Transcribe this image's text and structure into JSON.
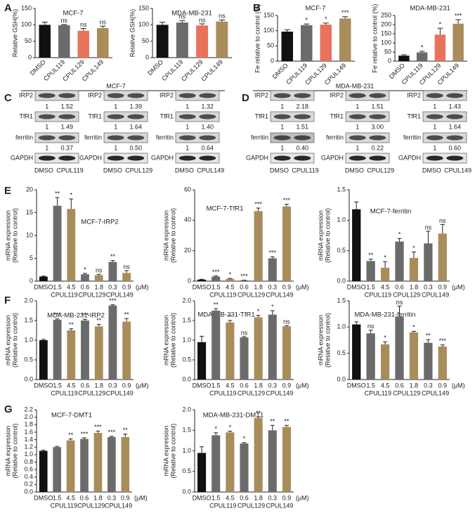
{
  "panel_labels": [
    "A",
    "B",
    "C",
    "D",
    "E",
    "F",
    "G"
  ],
  "chart_data": [
    {
      "type": "bar",
      "title": "MCF-7",
      "ylabel": [
        "Relative GSH(%)"
      ],
      "categories": [
        "DMSO",
        "CPUL119",
        "CPUL129",
        "CPUL149"
      ],
      "values": [
        100,
        99,
        82,
        90
      ],
      "errors": [
        8,
        2,
        7,
        6
      ],
      "annotations": [
        null,
        "ns",
        "ns",
        "ns"
      ],
      "colors": [
        "#111111",
        "#6b6b6b",
        "#e8735a",
        "#a88c5a"
      ],
      "ylim": [
        0,
        150
      ],
      "yticks": [
        0,
        50,
        100,
        150
      ]
    },
    {
      "type": "bar",
      "title": "MDA-MB-231",
      "ylabel": [
        "Relative GSH(%)"
      ],
      "categories": [
        "DMSO",
        "CPUL119",
        "CPUL129",
        "CPUL149"
      ],
      "values": [
        100,
        107,
        98,
        110
      ],
      "errors": [
        8,
        6,
        5,
        5
      ],
      "annotations": [
        null,
        "ns",
        "ns",
        "ns"
      ],
      "colors": [
        "#111111",
        "#6b6b6b",
        "#e8735a",
        "#a88c5a"
      ],
      "ylim": [
        0,
        150
      ],
      "yticks": [
        0,
        50,
        100,
        150
      ]
    },
    {
      "type": "bar",
      "title": "MCF-7",
      "ylabel": [
        "Fe relative to control (%)"
      ],
      "categories": [
        "DMSO",
        "CPUL119",
        "CPUL129",
        "CPUL149"
      ],
      "values": [
        97,
        118,
        120,
        140
      ],
      "errors": [
        6,
        4,
        5,
        6
      ],
      "annotations": [
        null,
        "*",
        "*",
        "***"
      ],
      "colors": [
        "#111111",
        "#6b6b6b",
        "#e8735a",
        "#a88c5a"
      ],
      "ylim": [
        0,
        150
      ],
      "yticks": [
        0,
        50,
        100,
        150
      ]
    },
    {
      "type": "bar",
      "title": "MDA-MB-231",
      "ylabel": [
        "Fe relative to control (%)"
      ],
      "categories": [
        "DMSO",
        "CPUL119",
        "CPUL129",
        "CPUL149"
      ],
      "values": [
        30,
        48,
        145,
        205
      ],
      "errors": [
        5,
        6,
        35,
        22
      ],
      "annotations": [
        null,
        "*",
        "*",
        "***"
      ],
      "colors": [
        "#111111",
        "#6b6b6b",
        "#e8735a",
        "#a88c5a"
      ],
      "ylim": [
        0,
        250
      ],
      "yticks": [
        0,
        50,
        100,
        150,
        200,
        250
      ]
    },
    {
      "type": "bar",
      "title": "MCF-7-IRP2",
      "ylabel": [
        "mRNA expression",
        "(Relative to control)"
      ],
      "categories": [
        "DMSO",
        "1.5",
        "4.5",
        "0.6",
        "1.8",
        "0.3",
        "0.9"
      ],
      "groups": [
        "CPUL119",
        "CPUL129",
        "CPUL149"
      ],
      "unit": "(μM)",
      "values": [
        1,
        16.5,
        15.8,
        1.5,
        1.3,
        4.2,
        1.8
      ],
      "errors": [
        0.1,
        1.8,
        2.2,
        0.2,
        0.2,
        0.3,
        0.5
      ],
      "annotations": [
        null,
        "**",
        "*",
        "*",
        "ns",
        "**",
        "ns"
      ],
      "colors": [
        "#111111",
        "#6b6b6b",
        "#a88c5a",
        "#6b6b6b",
        "#a88c5a",
        "#6b6b6b",
        "#a88c5a"
      ],
      "ylim": [
        0,
        20
      ],
      "yticks": [
        0,
        5,
        10,
        15,
        20
      ]
    },
    {
      "type": "bar",
      "title": "MCF-7-TfR1",
      "ylabel": [
        "mRNA expression",
        "(Relative to control)"
      ],
      "categories": [
        "DMSO",
        "1.5",
        "4.5",
        "0.6",
        "1.8",
        "0.3",
        "0.9"
      ],
      "groups": [
        "CPUL119",
        "CPUL129",
        "CPUL149"
      ],
      "unit": "(μM)",
      "values": [
        1,
        3,
        1.5,
        0.5,
        46,
        15,
        49
      ],
      "errors": [
        0.2,
        0.4,
        0.3,
        0.1,
        2,
        1,
        1.5
      ],
      "annotations": [
        null,
        "***",
        "*",
        "***",
        "***",
        "***",
        "***"
      ],
      "colors": [
        "#111111",
        "#6b6b6b",
        "#a88c5a",
        "#6b6b6b",
        "#a88c5a",
        "#6b6b6b",
        "#a88c5a"
      ],
      "ylim": [
        0,
        60
      ],
      "yticks": [
        0,
        20,
        40,
        60
      ]
    },
    {
      "type": "bar",
      "title": "MCF-7-ferritin",
      "ylabel": [
        "mRNA expression",
        "(Relative to control)"
      ],
      "categories": [
        "DMSO",
        "1.5",
        "4.5",
        "0.6",
        "1.8",
        "0.3",
        "0.9"
      ],
      "groups": [
        "CPUL119",
        "CPUL129",
        "CPUL149"
      ],
      "unit": "(μM)",
      "values": [
        1.18,
        0.33,
        0.22,
        0.65,
        0.38,
        0.62,
        0.78
      ],
      "errors": [
        0.12,
        0.03,
        0.1,
        0.05,
        0.1,
        0.2,
        0.15
      ],
      "annotations": [
        null,
        "**",
        "*",
        "*",
        "*",
        "ns",
        "ns"
      ],
      "colors": [
        "#111111",
        "#6b6b6b",
        "#a88c5a",
        "#6b6b6b",
        "#a88c5a",
        "#6b6b6b",
        "#a88c5a"
      ],
      "ylim": [
        0,
        1.5
      ],
      "yticks": [
        {
          "value": 0,
          "label": "0.0"
        },
        0.5,
        {
          "value": 1,
          "label": "1.0"
        },
        1.5
      ]
    },
    {
      "type": "bar",
      "title": "MDA-MB-231-IRP2",
      "ylabel": [
        "mRNA expression",
        "(Relative to control)"
      ],
      "categories": [
        "DMSO",
        "1.5",
        "4.5",
        "0.6",
        "1.8",
        "0.3",
        "0.9"
      ],
      "groups": [
        "CPUL119",
        "CPUL129",
        "CPUL149"
      ],
      "unit": "(μM)",
      "values": [
        1.0,
        1.52,
        1.25,
        1.5,
        1.35,
        1.88,
        1.47
      ],
      "errors": [
        0.02,
        0.02,
        0.04,
        0.03,
        0.05,
        0.02,
        0.08
      ],
      "annotations": [
        null,
        "***",
        "**",
        "***",
        "**",
        "***",
        "**"
      ],
      "colors": [
        "#111111",
        "#6b6b6b",
        "#a88c5a",
        "#6b6b6b",
        "#a88c5a",
        "#6b6b6b",
        "#a88c5a"
      ],
      "ylim": [
        0,
        2
      ],
      "yticks": [
        {
          "value": 0,
          "label": "0.0"
        },
        0.5,
        {
          "value": 1,
          "label": "1.0"
        },
        1.5,
        {
          "value": 2,
          "label": "2.0"
        }
      ]
    },
    {
      "type": "bar",
      "title": "MDA-MB-231-TfR1",
      "ylabel": [
        "mRNA expression",
        "(Relative to control)"
      ],
      "categories": [
        "DMSO",
        "1.5",
        "4.5",
        "0.6",
        "1.8",
        "0.3",
        "0.9"
      ],
      "groups": [
        "CPUL119",
        "CPUL129",
        "CPUL149"
      ],
      "unit": "(μM)",
      "values": [
        0.95,
        1.75,
        1.45,
        1.07,
        1.58,
        1.65,
        1.35
      ],
      "errors": [
        0.15,
        0.05,
        0.05,
        0.02,
        0.05,
        0.1,
        0.02
      ],
      "annotations": [
        null,
        "**",
        "*",
        "ns",
        "*",
        "*",
        "ns"
      ],
      "colors": [
        "#111111",
        "#6b6b6b",
        "#a88c5a",
        "#6b6b6b",
        "#a88c5a",
        "#6b6b6b",
        "#a88c5a"
      ],
      "ylim": [
        0,
        2
      ],
      "yticks": [
        {
          "value": 0,
          "label": "0.0"
        },
        0.5,
        {
          "value": 1,
          "label": "1.0"
        },
        1.5,
        {
          "value": 2,
          "label": "2.0"
        }
      ]
    },
    {
      "type": "bar",
      "title": "MDA-MB-231-ferritin",
      "ylabel": [
        "mRNA expression",
        "(Relative to control)"
      ],
      "categories": [
        "DMSO",
        "1.5",
        "4.5",
        "0.6",
        "1.8",
        "0.3",
        "0.9"
      ],
      "groups": [
        "CPUL119",
        "CPUL129",
        "CPUL149"
      ],
      "unit": "(μM)",
      "values": [
        1.05,
        0.88,
        0.67,
        1.2,
        0.9,
        0.7,
        0.63
      ],
      "errors": [
        0.05,
        0.06,
        0.05,
        0.2,
        0.02,
        0.06,
        0.03
      ],
      "annotations": [
        null,
        "ns",
        "*",
        "ns",
        "*",
        "**",
        "***"
      ],
      "colors": [
        "#111111",
        "#6b6b6b",
        "#a88c5a",
        "#6b6b6b",
        "#a88c5a",
        "#6b6b6b",
        "#a88c5a"
      ],
      "ylim": [
        0,
        1.5
      ],
      "yticks": [
        {
          "value": 0,
          "label": "0.0"
        },
        0.5,
        {
          "value": 1,
          "label": "1.0"
        },
        1.5
      ]
    },
    {
      "type": "bar",
      "title": "MCF-7-DMT1",
      "ylabel": [
        "mRNA expression",
        "(Relative to control)"
      ],
      "categories": [
        "DMSO",
        "1.5",
        "4.5",
        "0.6",
        "1.8",
        "0.3",
        "0.9"
      ],
      "groups": [
        "CPUL119",
        "CPUL129",
        "CPUL149"
      ],
      "unit": "(μM)",
      "values": [
        1.1,
        1.2,
        1.38,
        1.42,
        1.58,
        1.47,
        1.47
      ],
      "errors": [
        0.02,
        0.02,
        0.04,
        0.03,
        0.05,
        0.02,
        0.08
      ],
      "annotations": [
        null,
        null,
        "**",
        "***",
        "***",
        "***",
        "**"
      ],
      "colors": [
        "#111111",
        "#6b6b6b",
        "#a88c5a",
        "#6b6b6b",
        "#a88c5a",
        "#6b6b6b",
        "#a88c5a"
      ],
      "ylim": [
        0,
        2.2
      ],
      "yticks": [
        {
          "value": 0,
          "label": "0.0"
        },
        0.2,
        0.4,
        0.6,
        0.8,
        {
          "value": 1,
          "label": "1.0"
        },
        1.2,
        1.4,
        1.6,
        1.8,
        {
          "value": 2,
          "label": "2.0"
        },
        2.2
      ]
    },
    {
      "type": "bar",
      "title": "MDA-MB-231-DMT1",
      "ylabel": [
        "mRNA expression",
        "(Relative to control)"
      ],
      "categories": [
        "DMSO",
        "1.5",
        "4.5",
        "0.6",
        "1.8",
        "0.3",
        "0.9"
      ],
      "groups": [
        "CPUL119",
        "CPUL129",
        "CPUL149"
      ],
      "unit": "(μM)",
      "values": [
        0.95,
        1.38,
        1.45,
        1.18,
        1.8,
        1.5,
        1.58
      ],
      "errors": [
        0.15,
        0.06,
        0.03,
        0.02,
        0.03,
        0.12,
        0.04
      ],
      "annotations": [
        null,
        "*",
        "*",
        "*",
        "**",
        "**",
        "**"
      ],
      "colors": [
        "#111111",
        "#6b6b6b",
        "#a88c5a",
        "#6b6b6b",
        "#a88c5a",
        "#6b6b6b",
        "#a88c5a"
      ],
      "ylim": [
        0,
        2
      ],
      "yticks": [
        {
          "value": 0,
          "label": "0.0"
        },
        0.5,
        {
          "value": 1,
          "label": "1.0"
        },
        1.5,
        {
          "value": 2,
          "label": "2.0"
        }
      ]
    }
  ],
  "blot_panels": [
    {
      "title": "MCF-7",
      "blots": [
        {
          "lanes": [
            "DMSO",
            "CPUL119"
          ],
          "rows": [
            {
              "name": "IRP2",
              "values": [
                "1",
                "1.52"
              ]
            },
            {
              "name": "TfR1",
              "values": [
                "1",
                "1.49"
              ]
            },
            {
              "name": "ferritin",
              "values": [
                "1",
                "0.37"
              ]
            },
            {
              "name": "GAPDH"
            }
          ]
        },
        {
          "lanes": [
            "DMSO",
            "CPUL129"
          ],
          "rows": [
            {
              "name": "IRP2",
              "values": [
                "1",
                "1.39"
              ]
            },
            {
              "name": "TfR1",
              "values": [
                "1",
                "1.64"
              ]
            },
            {
              "name": "ferritin",
              "values": [
                "1",
                "0.50"
              ]
            },
            {
              "name": "GAPDH"
            }
          ]
        },
        {
          "lanes": [
            "DMSO",
            "CPUL149"
          ],
          "rows": [
            {
              "name": "IRP2",
              "values": [
                "1",
                "1.32"
              ]
            },
            {
              "name": "TfR1",
              "values": [
                "1",
                "1.40"
              ]
            },
            {
              "name": "ferritin",
              "values": [
                "1",
                "0.64"
              ]
            },
            {
              "name": "GAPDH"
            }
          ]
        }
      ]
    },
    {
      "title": "MDA-MB-231",
      "blots": [
        {
          "lanes": [
            "DMSO",
            "CPUL119"
          ],
          "rows": [
            {
              "name": "IRP2",
              "values": [
                "1",
                "2.18"
              ]
            },
            {
              "name": "TfR1",
              "values": [
                "1",
                "1.51"
              ]
            },
            {
              "name": "ferritin",
              "values": [
                "1",
                "0.40"
              ]
            },
            {
              "name": "GAPDH"
            }
          ]
        },
        {
          "lanes": [
            "DMSO",
            "CPUL129"
          ],
          "rows": [
            {
              "name": "IRP2",
              "values": [
                "1",
                "1.51"
              ]
            },
            {
              "name": "TfR1",
              "values": [
                "1",
                "3.00"
              ]
            },
            {
              "name": "ferritin",
              "values": [
                "1",
                "0.22"
              ]
            },
            {
              "name": "GAPDH"
            }
          ]
        },
        {
          "lanes": [
            "DMSO",
            "CPUL149"
          ],
          "rows": [
            {
              "name": "IRP2",
              "values": [
                "1",
                "1.43"
              ]
            },
            {
              "name": "TfR1",
              "values": [
                "1",
                "1.64"
              ]
            },
            {
              "name": "ferritin",
              "values": [
                "1",
                "0.60"
              ]
            },
            {
              "name": "GAPDH"
            }
          ]
        }
      ]
    }
  ]
}
